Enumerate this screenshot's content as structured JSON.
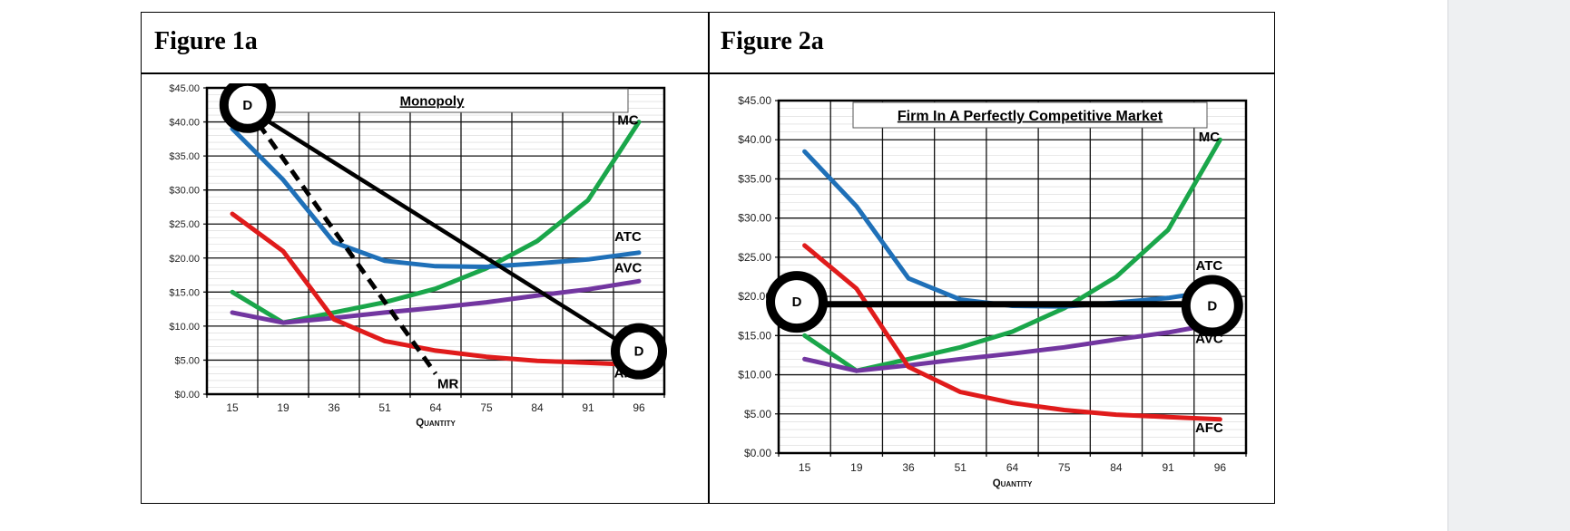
{
  "figures": [
    {
      "header": "Figure 1a"
    },
    {
      "header": "Figure 2a"
    }
  ],
  "colors": {
    "MC": "#1aa64a",
    "ATC": "#1f70b8",
    "AVC": "#7236a0",
    "AFC": "#e01b1b",
    "demand": "#000000",
    "grid": "#d6d6d6"
  },
  "chart_data": [
    {
      "type": "line",
      "title": "Monopoly",
      "xlabel": "Quantity",
      "ylabel": "",
      "categories": [
        "15",
        "19",
        "36",
        "51",
        "64",
        "75",
        "84",
        "91",
        "96"
      ],
      "y_ticks": [
        "$0.00",
        "$5.00",
        "$10.00",
        "$15.00",
        "$20.00",
        "$25.00",
        "$30.00",
        "$35.00",
        "$40.00",
        "$45.00"
      ],
      "ylim": [
        0,
        45
      ],
      "grid": true,
      "series": [
        {
          "name": "MC",
          "values": [
            15,
            10.5,
            12,
            13.5,
            15.5,
            18.5,
            22.5,
            28.5,
            40
          ]
        },
        {
          "name": "ATC",
          "values": [
            39,
            31.5,
            22.3,
            19.6,
            18.8,
            18.7,
            19.2,
            19.8,
            20.8
          ]
        },
        {
          "name": "AVC",
          "values": [
            12,
            10.5,
            11.2,
            12,
            12.7,
            13.5,
            14.5,
            15.4,
            16.6
          ]
        },
        {
          "name": "AFC",
          "values": [
            26.5,
            21,
            11,
            7.8,
            6.4,
            5.5,
            4.9,
            4.6,
            4.3
          ]
        },
        {
          "name": "D",
          "x": [
            0.3,
            8.1
          ],
          "values": [
            42,
            5.5
          ],
          "style": "solid"
        },
        {
          "name": "MR",
          "x": [
            0.3,
            4.0
          ],
          "values": [
            42,
            3
          ],
          "style": "dashed"
        }
      ],
      "annotations": [
        {
          "text": "MC",
          "series": "MC"
        },
        {
          "text": "ATC",
          "series": "ATC"
        },
        {
          "text": "AVC",
          "series": "AVC"
        },
        {
          "text": "AFC",
          "series": "AFC"
        },
        {
          "text": "MR",
          "series": "MR"
        },
        {
          "text": "D",
          "marker": "circle",
          "at": [
            0.3,
            42.5
          ]
        },
        {
          "text": "D",
          "marker": "circle",
          "at": [
            8.0,
            6.3
          ]
        }
      ]
    },
    {
      "type": "line",
      "title": "Firm In A Perfectly Competitive Market",
      "xlabel": "Quantity",
      "ylabel": "",
      "categories": [
        "15",
        "19",
        "36",
        "51",
        "64",
        "75",
        "84",
        "91",
        "96"
      ],
      "y_ticks": [
        "$0.00",
        "$5.00",
        "$10.00",
        "$15.00",
        "$20.00",
        "$25.00",
        "$30.00",
        "$35.00",
        "$40.00",
        "$45.00"
      ],
      "ylim": [
        0,
        45
      ],
      "grid": true,
      "series": [
        {
          "name": "MC",
          "values": [
            15,
            10.5,
            12,
            13.5,
            15.5,
            18.5,
            22.5,
            28.5,
            40
          ]
        },
        {
          "name": "ATC",
          "values": [
            38.5,
            31.5,
            22.3,
            19.6,
            18.8,
            18.7,
            19.2,
            19.8,
            20.8
          ]
        },
        {
          "name": "AVC",
          "values": [
            12,
            10.5,
            11.2,
            12,
            12.7,
            13.5,
            14.5,
            15.4,
            16.6
          ]
        },
        {
          "name": "AFC",
          "values": [
            26.5,
            21,
            11,
            7.8,
            6.4,
            5.5,
            4.9,
            4.6,
            4.3
          ]
        },
        {
          "name": "D",
          "x": [
            -0.2,
            7.8
          ],
          "values": [
            19,
            19
          ],
          "style": "solid"
        }
      ],
      "annotations": [
        {
          "text": "MC",
          "series": "MC"
        },
        {
          "text": "ATC",
          "series": "ATC"
        },
        {
          "text": "AVC",
          "series": "AVC"
        },
        {
          "text": "AFC",
          "series": "AFC"
        },
        {
          "text": "D",
          "marker": "circle",
          "at": [
            -0.15,
            19.3
          ]
        },
        {
          "text": "D",
          "marker": "circle",
          "at": [
            7.85,
            18.8
          ]
        }
      ]
    }
  ]
}
